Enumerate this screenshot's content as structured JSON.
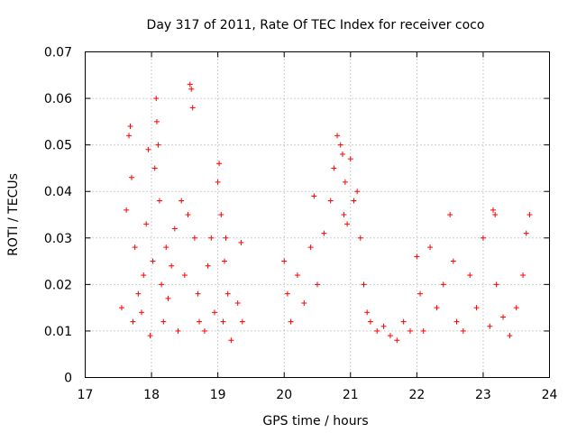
{
  "chart_data": {
    "type": "scatter",
    "title": "Day 317 of 2011, Rate Of TEC Index for receiver coco",
    "xlabel": "GPS time / hours",
    "ylabel": "ROTI / TECUs",
    "xlim": [
      17,
      24
    ],
    "ylim": [
      0,
      0.07
    ],
    "x_ticks": [
      "17",
      "18",
      "19",
      "20",
      "21",
      "22",
      "23",
      "24"
    ],
    "y_ticks": [
      "0",
      "0.01",
      "0.02",
      "0.03",
      "0.04",
      "0.05",
      "0.06",
      "0.07"
    ],
    "grid": true,
    "marker": "+",
    "color": "#ff0000",
    "series": [
      {
        "name": "ROTI",
        "x": [
          17.55,
          17.62,
          17.66,
          17.68,
          17.7,
          17.72,
          17.75,
          17.8,
          17.85,
          17.88,
          17.92,
          17.95,
          17.98,
          18.02,
          18.05,
          18.07,
          18.08,
          18.1,
          18.12,
          18.15,
          18.18,
          18.22,
          18.25,
          18.3,
          18.35,
          18.4,
          18.45,
          18.5,
          18.55,
          18.58,
          18.6,
          18.62,
          18.65,
          18.7,
          18.72,
          18.8,
          18.85,
          18.9,
          18.95,
          19.0,
          19.02,
          19.05,
          19.08,
          19.1,
          19.12,
          19.15,
          19.2,
          19.3,
          19.35,
          19.37,
          20.0,
          20.05,
          20.1,
          20.2,
          20.3,
          20.4,
          20.45,
          20.5,
          20.6,
          20.7,
          20.75,
          20.8,
          20.85,
          20.88,
          20.9,
          20.92,
          20.95,
          21.0,
          21.05,
          21.1,
          21.15,
          21.2,
          21.25,
          21.3,
          21.4,
          21.5,
          21.6,
          21.7,
          21.8,
          21.9,
          22.0,
          22.05,
          22.1,
          22.2,
          22.3,
          22.4,
          22.5,
          22.55,
          22.6,
          22.7,
          22.8,
          22.9,
          23.0,
          23.1,
          23.15,
          23.18,
          23.2,
          23.3,
          23.4,
          23.5,
          23.6,
          23.65,
          23.7
        ],
        "y": [
          0.015,
          0.036,
          0.052,
          0.054,
          0.043,
          0.012,
          0.028,
          0.018,
          0.014,
          0.022,
          0.033,
          0.049,
          0.009,
          0.025,
          0.045,
          0.06,
          0.055,
          0.05,
          0.038,
          0.02,
          0.012,
          0.028,
          0.017,
          0.024,
          0.032,
          0.01,
          0.038,
          0.022,
          0.035,
          0.063,
          0.062,
          0.058,
          0.03,
          0.018,
          0.012,
          0.01,
          0.024,
          0.03,
          0.014,
          0.042,
          0.046,
          0.035,
          0.012,
          0.025,
          0.03,
          0.018,
          0.008,
          0.016,
          0.029,
          0.012,
          0.025,
          0.018,
          0.012,
          0.022,
          0.016,
          0.028,
          0.039,
          0.02,
          0.031,
          0.038,
          0.045,
          0.052,
          0.05,
          0.048,
          0.035,
          0.042,
          0.033,
          0.047,
          0.038,
          0.04,
          0.03,
          0.02,
          0.014,
          0.012,
          0.01,
          0.011,
          0.009,
          0.008,
          0.012,
          0.01,
          0.026,
          0.018,
          0.01,
          0.028,
          0.015,
          0.02,
          0.035,
          0.025,
          0.012,
          0.01,
          0.022,
          0.015,
          0.03,
          0.011,
          0.036,
          0.035,
          0.02,
          0.013,
          0.009,
          0.015,
          0.022,
          0.031,
          0.035
        ]
      }
    ]
  }
}
